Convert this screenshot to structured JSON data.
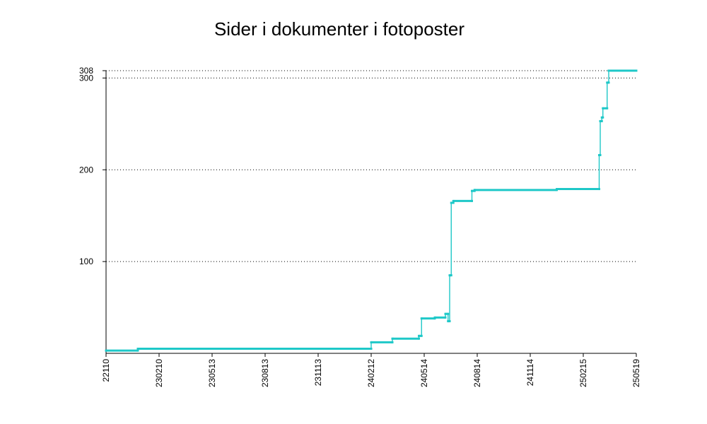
{
  "chart_data": {
    "type": "line",
    "title": "Sider i dokumenter i fotoposter",
    "xlabel": "",
    "ylabel": "",
    "x_tick_labels": [
      "22110",
      "230210",
      "230513",
      "230813",
      "231113",
      "240212",
      "240514",
      "240814",
      "241114",
      "250215",
      "250519"
    ],
    "y_ticks": [
      100,
      200,
      300,
      308
    ],
    "ylim": [
      0,
      308
    ],
    "grid": "horizontal-dotted",
    "color": "#1ec8c8",
    "series": [
      {
        "values": [
          [
            0.0,
            3
          ],
          [
            0.6,
            3
          ],
          [
            0.6,
            5
          ],
          [
            5.0,
            5
          ],
          [
            5.0,
            12
          ],
          [
            5.4,
            12
          ],
          [
            5.4,
            16
          ],
          [
            5.9,
            16
          ],
          [
            5.9,
            19
          ],
          [
            5.95,
            19
          ],
          [
            5.95,
            38
          ],
          [
            6.2,
            38
          ],
          [
            6.2,
            39
          ],
          [
            6.4,
            39
          ],
          [
            6.4,
            43
          ],
          [
            6.45,
            43
          ],
          [
            6.45,
            35
          ],
          [
            6.48,
            35
          ],
          [
            6.48,
            85
          ],
          [
            6.51,
            85
          ],
          [
            6.51,
            164
          ],
          [
            6.55,
            164
          ],
          [
            6.55,
            166
          ],
          [
            6.9,
            166
          ],
          [
            6.9,
            177
          ],
          [
            6.95,
            177
          ],
          [
            6.95,
            178
          ],
          [
            8.5,
            178
          ],
          [
            8.5,
            179
          ],
          [
            9.3,
            179
          ],
          [
            9.3,
            216
          ],
          [
            9.32,
            216
          ],
          [
            9.32,
            253
          ],
          [
            9.35,
            253
          ],
          [
            9.35,
            257
          ],
          [
            9.37,
            257
          ],
          [
            9.37,
            267
          ],
          [
            9.45,
            267
          ],
          [
            9.45,
            295
          ],
          [
            9.48,
            295
          ],
          [
            9.48,
            308
          ],
          [
            10.0,
            308
          ]
        ]
      }
    ]
  }
}
